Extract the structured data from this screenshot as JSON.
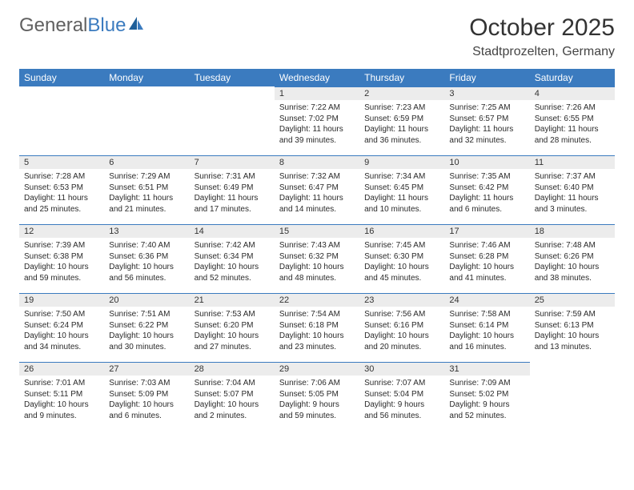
{
  "brand": {
    "part1": "General",
    "part2": "Blue"
  },
  "title": "October 2025",
  "location": "Stadtprozelten, Germany",
  "colors": {
    "header_bg": "#3b7bbf",
    "header_text": "#ffffff",
    "daynum_bg": "#ececec",
    "cell_border_top": "#3b7bbf",
    "text": "#2a2a2a",
    "title_color": "#333333"
  },
  "typography": {
    "title_fontsize": 30,
    "location_fontsize": 16,
    "header_fontsize": 12,
    "cell_fontsize": 10
  },
  "weekdays": [
    "Sunday",
    "Monday",
    "Tuesday",
    "Wednesday",
    "Thursday",
    "Friday",
    "Saturday"
  ],
  "weeks": [
    [
      null,
      null,
      null,
      {
        "n": "1",
        "sr": "Sunrise: 7:22 AM",
        "ss": "Sunset: 7:02 PM",
        "dl": "Daylight: 11 hours and 39 minutes."
      },
      {
        "n": "2",
        "sr": "Sunrise: 7:23 AM",
        "ss": "Sunset: 6:59 PM",
        "dl": "Daylight: 11 hours and 36 minutes."
      },
      {
        "n": "3",
        "sr": "Sunrise: 7:25 AM",
        "ss": "Sunset: 6:57 PM",
        "dl": "Daylight: 11 hours and 32 minutes."
      },
      {
        "n": "4",
        "sr": "Sunrise: 7:26 AM",
        "ss": "Sunset: 6:55 PM",
        "dl": "Daylight: 11 hours and 28 minutes."
      }
    ],
    [
      {
        "n": "5",
        "sr": "Sunrise: 7:28 AM",
        "ss": "Sunset: 6:53 PM",
        "dl": "Daylight: 11 hours and 25 minutes."
      },
      {
        "n": "6",
        "sr": "Sunrise: 7:29 AM",
        "ss": "Sunset: 6:51 PM",
        "dl": "Daylight: 11 hours and 21 minutes."
      },
      {
        "n": "7",
        "sr": "Sunrise: 7:31 AM",
        "ss": "Sunset: 6:49 PM",
        "dl": "Daylight: 11 hours and 17 minutes."
      },
      {
        "n": "8",
        "sr": "Sunrise: 7:32 AM",
        "ss": "Sunset: 6:47 PM",
        "dl": "Daylight: 11 hours and 14 minutes."
      },
      {
        "n": "9",
        "sr": "Sunrise: 7:34 AM",
        "ss": "Sunset: 6:45 PM",
        "dl": "Daylight: 11 hours and 10 minutes."
      },
      {
        "n": "10",
        "sr": "Sunrise: 7:35 AM",
        "ss": "Sunset: 6:42 PM",
        "dl": "Daylight: 11 hours and 6 minutes."
      },
      {
        "n": "11",
        "sr": "Sunrise: 7:37 AM",
        "ss": "Sunset: 6:40 PM",
        "dl": "Daylight: 11 hours and 3 minutes."
      }
    ],
    [
      {
        "n": "12",
        "sr": "Sunrise: 7:39 AM",
        "ss": "Sunset: 6:38 PM",
        "dl": "Daylight: 10 hours and 59 minutes."
      },
      {
        "n": "13",
        "sr": "Sunrise: 7:40 AM",
        "ss": "Sunset: 6:36 PM",
        "dl": "Daylight: 10 hours and 56 minutes."
      },
      {
        "n": "14",
        "sr": "Sunrise: 7:42 AM",
        "ss": "Sunset: 6:34 PM",
        "dl": "Daylight: 10 hours and 52 minutes."
      },
      {
        "n": "15",
        "sr": "Sunrise: 7:43 AM",
        "ss": "Sunset: 6:32 PM",
        "dl": "Daylight: 10 hours and 48 minutes."
      },
      {
        "n": "16",
        "sr": "Sunrise: 7:45 AM",
        "ss": "Sunset: 6:30 PM",
        "dl": "Daylight: 10 hours and 45 minutes."
      },
      {
        "n": "17",
        "sr": "Sunrise: 7:46 AM",
        "ss": "Sunset: 6:28 PM",
        "dl": "Daylight: 10 hours and 41 minutes."
      },
      {
        "n": "18",
        "sr": "Sunrise: 7:48 AM",
        "ss": "Sunset: 6:26 PM",
        "dl": "Daylight: 10 hours and 38 minutes."
      }
    ],
    [
      {
        "n": "19",
        "sr": "Sunrise: 7:50 AM",
        "ss": "Sunset: 6:24 PM",
        "dl": "Daylight: 10 hours and 34 minutes."
      },
      {
        "n": "20",
        "sr": "Sunrise: 7:51 AM",
        "ss": "Sunset: 6:22 PM",
        "dl": "Daylight: 10 hours and 30 minutes."
      },
      {
        "n": "21",
        "sr": "Sunrise: 7:53 AM",
        "ss": "Sunset: 6:20 PM",
        "dl": "Daylight: 10 hours and 27 minutes."
      },
      {
        "n": "22",
        "sr": "Sunrise: 7:54 AM",
        "ss": "Sunset: 6:18 PM",
        "dl": "Daylight: 10 hours and 23 minutes."
      },
      {
        "n": "23",
        "sr": "Sunrise: 7:56 AM",
        "ss": "Sunset: 6:16 PM",
        "dl": "Daylight: 10 hours and 20 minutes."
      },
      {
        "n": "24",
        "sr": "Sunrise: 7:58 AM",
        "ss": "Sunset: 6:14 PM",
        "dl": "Daylight: 10 hours and 16 minutes."
      },
      {
        "n": "25",
        "sr": "Sunrise: 7:59 AM",
        "ss": "Sunset: 6:13 PM",
        "dl": "Daylight: 10 hours and 13 minutes."
      }
    ],
    [
      {
        "n": "26",
        "sr": "Sunrise: 7:01 AM",
        "ss": "Sunset: 5:11 PM",
        "dl": "Daylight: 10 hours and 9 minutes."
      },
      {
        "n": "27",
        "sr": "Sunrise: 7:03 AM",
        "ss": "Sunset: 5:09 PM",
        "dl": "Daylight: 10 hours and 6 minutes."
      },
      {
        "n": "28",
        "sr": "Sunrise: 7:04 AM",
        "ss": "Sunset: 5:07 PM",
        "dl": "Daylight: 10 hours and 2 minutes."
      },
      {
        "n": "29",
        "sr": "Sunrise: 7:06 AM",
        "ss": "Sunset: 5:05 PM",
        "dl": "Daylight: 9 hours and 59 minutes."
      },
      {
        "n": "30",
        "sr": "Sunrise: 7:07 AM",
        "ss": "Sunset: 5:04 PM",
        "dl": "Daylight: 9 hours and 56 minutes."
      },
      {
        "n": "31",
        "sr": "Sunrise: 7:09 AM",
        "ss": "Sunset: 5:02 PM",
        "dl": "Daylight: 9 hours and 52 minutes."
      },
      null
    ]
  ]
}
